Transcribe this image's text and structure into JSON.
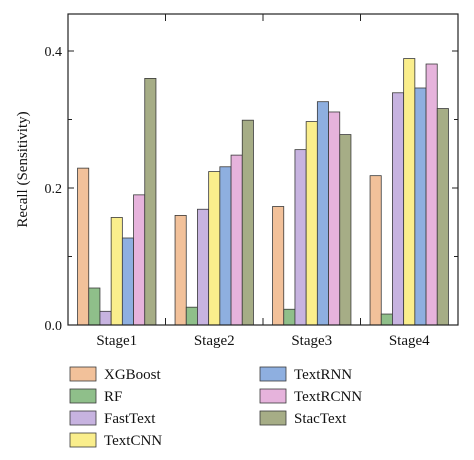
{
  "chart_data": {
    "type": "bar",
    "ylabel": "Recall (Sensitivity)",
    "xlabel": "",
    "title": "",
    "ylim": [
      0,
      0.4
    ],
    "yticks": [
      0.0,
      0.2,
      0.4
    ],
    "ytick_labels": [
      "0.0",
      "0.2",
      "0.4"
    ],
    "categories": [
      "Stage1",
      "Stage2",
      "Stage3",
      "Stage4"
    ],
    "legend_position": "below",
    "series": [
      {
        "name": "XGBoost",
        "color": "#f2c19a",
        "values": [
          0.229,
          0.16,
          0.173,
          0.218
        ]
      },
      {
        "name": "RF",
        "color": "#8fbf8a",
        "values": [
          0.054,
          0.026,
          0.023,
          0.016
        ]
      },
      {
        "name": "FastText",
        "color": "#c7b3e0",
        "values": [
          0.02,
          0.169,
          0.256,
          0.339
        ]
      },
      {
        "name": "TextCNN",
        "color": "#faee8c",
        "values": [
          0.157,
          0.224,
          0.297,
          0.389
        ]
      },
      {
        "name": "TextRNN",
        "color": "#8eafe0",
        "values": [
          0.127,
          0.231,
          0.326,
          0.346
        ]
      },
      {
        "name": "TextRCNN",
        "color": "#e6b3dc",
        "values": [
          0.19,
          0.248,
          0.311,
          0.381
        ]
      },
      {
        "name": "StacText",
        "color": "#a6ad86",
        "values": [
          0.36,
          0.299,
          0.278,
          0.316
        ]
      }
    ]
  }
}
